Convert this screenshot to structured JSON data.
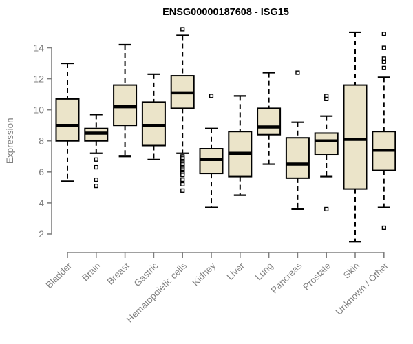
{
  "chart_data": {
    "type": "boxplot",
    "title": "ENSG00000187608 - ISG15",
    "ylabel": "Expression",
    "xlabel": "",
    "grid": false,
    "legend": "none",
    "yticks": [
      2,
      4,
      6,
      8,
      10,
      12,
      14
    ],
    "ylim": [
      1.4,
      15.3
    ],
    "categories": [
      "Bladder",
      "Brain",
      "Breast",
      "Gastric",
      "Hematopoietic cells",
      "Kidney",
      "Liver",
      "Lung",
      "Pancreas",
      "Prostate",
      "Skin",
      "Unknown / Other"
    ],
    "boxes": [
      {
        "label": "Bladder",
        "whisker_low": 5.4,
        "q1": 8.0,
        "median": 9.0,
        "q3": 10.7,
        "whisker_high": 13.0,
        "outliers": []
      },
      {
        "label": "Brain",
        "whisker_low": 7.2,
        "q1": 8.0,
        "median": 8.5,
        "q3": 8.8,
        "whisker_high": 9.7,
        "outliers": [
          6.8,
          6.3,
          5.5,
          5.1
        ]
      },
      {
        "label": "Breast",
        "whisker_low": 7.0,
        "q1": 9.0,
        "median": 10.2,
        "q3": 11.6,
        "whisker_high": 14.2,
        "outliers": []
      },
      {
        "label": "Gastric",
        "whisker_low": 6.8,
        "q1": 7.7,
        "median": 9.0,
        "q3": 10.5,
        "whisker_high": 12.3,
        "outliers": []
      },
      {
        "label": "Hematopoietic cells",
        "whisker_low": 7.2,
        "q1": 10.1,
        "median": 11.1,
        "q3": 12.2,
        "whisker_high": 14.8,
        "outliers": [
          15.2,
          7.0,
          6.9,
          6.8,
          6.7,
          6.6,
          6.5,
          6.4,
          6.3,
          6.2,
          6.1,
          6.0,
          5.9,
          5.8,
          5.5,
          5.2,
          4.8
        ]
      },
      {
        "label": "Kidney",
        "whisker_low": 3.7,
        "q1": 5.9,
        "median": 6.8,
        "q3": 7.5,
        "whisker_high": 8.8,
        "outliers": [
          10.9
        ]
      },
      {
        "label": "Liver",
        "whisker_low": 4.5,
        "q1": 5.7,
        "median": 7.2,
        "q3": 8.6,
        "whisker_high": 10.9,
        "outliers": []
      },
      {
        "label": "Lung",
        "whisker_low": 6.5,
        "q1": 8.4,
        "median": 8.9,
        "q3": 10.1,
        "whisker_high": 12.4,
        "outliers": []
      },
      {
        "label": "Pancreas",
        "whisker_low": 3.6,
        "q1": 5.6,
        "median": 6.5,
        "q3": 8.2,
        "whisker_high": 9.2,
        "outliers": [
          12.4
        ]
      },
      {
        "label": "Prostate",
        "whisker_low": 5.7,
        "q1": 7.1,
        "median": 8.0,
        "q3": 8.5,
        "whisker_high": 9.6,
        "outliers": [
          10.9,
          10.7,
          3.6
        ]
      },
      {
        "label": "Skin",
        "whisker_low": 1.5,
        "q1": 4.9,
        "median": 8.1,
        "q3": 11.6,
        "whisker_high": 15.0,
        "outliers": []
      },
      {
        "label": "Unknown / Other",
        "whisker_low": 3.7,
        "q1": 6.1,
        "median": 7.4,
        "q3": 8.6,
        "whisker_high": 12.1,
        "outliers": [
          14.9,
          14.0,
          13.3,
          13.1,
          12.7,
          2.4
        ]
      }
    ],
    "colors": {
      "box_fill": "#EBE4C9",
      "box_border": "#000000",
      "median": "#000000",
      "whisker": "#000000",
      "outlier_stroke": "#000000",
      "outlier_fill": "#ffffff",
      "axis": "#808080",
      "tick_label": "#808080",
      "axis_label": "#808080",
      "title": "#000000",
      "background": "#ffffff"
    }
  }
}
